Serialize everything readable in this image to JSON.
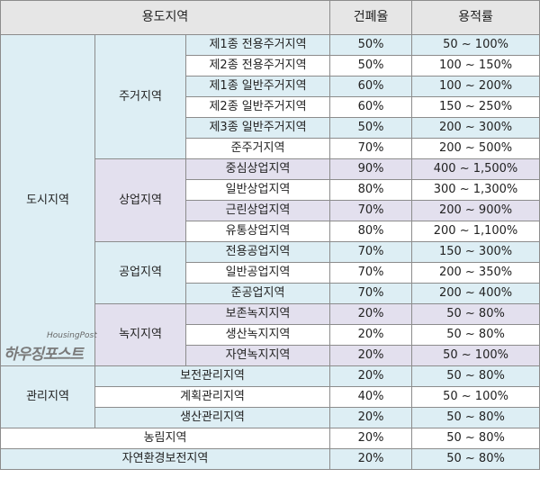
{
  "header": {
    "zone": "용도지역",
    "coverage": "건폐율",
    "far": "용적률"
  },
  "groups": {
    "urban": "도시지역",
    "residential": "주거지역",
    "commercial": "상업지역",
    "industrial": "공업지역",
    "green": "녹지지역",
    "management": "관리지역"
  },
  "rows": [
    {
      "name": "제1종 전용주거지역",
      "coverage": "50%",
      "far": "50 ~ 100%"
    },
    {
      "name": "제2종 전용주거지역",
      "coverage": "50%",
      "far": "100 ~ 150%"
    },
    {
      "name": "제1종 일반주거지역",
      "coverage": "60%",
      "far": "100 ~ 200%"
    },
    {
      "name": "제2종 일반주거지역",
      "coverage": "60%",
      "far": "150 ~ 250%"
    },
    {
      "name": "제3종 일반주거지역",
      "coverage": "50%",
      "far": "200 ~ 300%"
    },
    {
      "name": "준주거지역",
      "coverage": "70%",
      "far": "200 ~ 500%"
    },
    {
      "name": "중심상업지역",
      "coverage": "90%",
      "far": "400 ~ 1,500%"
    },
    {
      "name": "일반상업지역",
      "coverage": "80%",
      "far": "300 ~ 1,300%"
    },
    {
      "name": "근린상업지역",
      "coverage": "70%",
      "far": "200 ~ 900%"
    },
    {
      "name": "유통상업지역",
      "coverage": "80%",
      "far": "200 ~ 1,100%"
    },
    {
      "name": "전용공업지역",
      "coverage": "70%",
      "far": "150 ~ 300%"
    },
    {
      "name": "일반공업지역",
      "coverage": "70%",
      "far": "200 ~ 350%"
    },
    {
      "name": "준공업지역",
      "coverage": "70%",
      "far": "200 ~ 400%"
    },
    {
      "name": "보존녹지지역",
      "coverage": "20%",
      "far": "50 ~ 80%"
    },
    {
      "name": "생산녹지지역",
      "coverage": "20%",
      "far": "50 ~ 80%"
    },
    {
      "name": "자연녹지지역",
      "coverage": "20%",
      "far": "50 ~ 100%"
    },
    {
      "name": "보전관리지역",
      "coverage": "20%",
      "far": "50 ~ 80%"
    },
    {
      "name": "계획관리지역",
      "coverage": "40%",
      "far": "50 ~ 100%"
    },
    {
      "name": "생산관리지역",
      "coverage": "20%",
      "far": "50 ~ 80%"
    },
    {
      "name": "농림지역",
      "coverage": "20%",
      "far": "50 ~ 80%"
    },
    {
      "name": "자연환경보전지역",
      "coverage": "20%",
      "far": "50 ~ 80%"
    }
  ],
  "watermark": {
    "en": "HousingPost",
    "ko": "하우징포스트"
  }
}
